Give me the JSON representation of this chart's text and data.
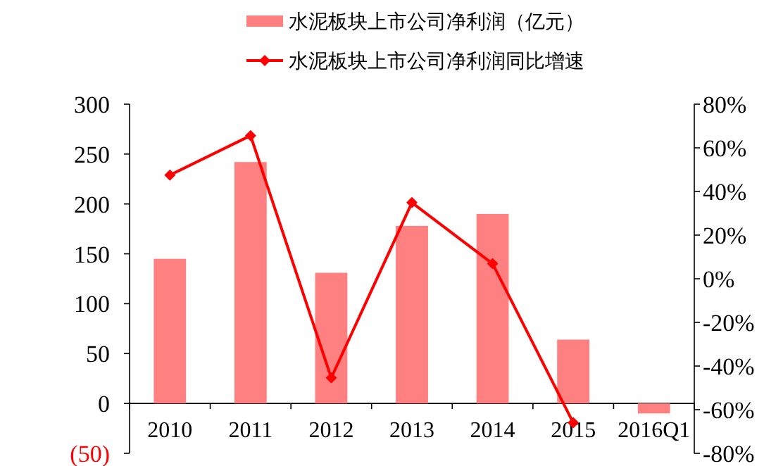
{
  "chart_data": {
    "type": "bar",
    "categories": [
      "2010",
      "2011",
      "2012",
      "2013",
      "2014",
      "2015",
      "2016Q1"
    ],
    "series": [
      {
        "name": "水泥板块上市公司净利润（亿元）",
        "color": "#ff8080",
        "values": [
          145,
          242,
          131,
          178,
          190,
          64,
          -10
        ]
      },
      {
        "name": "水泥板块上市公司净利润同比增速",
        "type": "line",
        "axis": "y2",
        "color": "#ff0000",
        "marker": "diamond",
        "values": [
          47.5,
          65.6,
          -45.4,
          34.9,
          6.9,
          -66,
          null
        ]
      }
    ],
    "ylim": [
      -50,
      300
    ],
    "yticks": [
      {
        "value": -50,
        "label": "(50)"
      },
      0,
      50,
      100,
      150,
      200,
      250,
      300
    ],
    "y2lim": [
      -80,
      80
    ],
    "y2ticks": [
      {
        "value": -80,
        "label": "-80%"
      },
      {
        "value": -60,
        "label": "-60%"
      },
      {
        "value": -40,
        "label": "-40%"
      },
      {
        "value": -20,
        "label": "-20%"
      },
      {
        "value": 0,
        "label": "0%"
      },
      {
        "value": 20,
        "label": "20%"
      },
      {
        "value": 40,
        "label": "40%"
      },
      {
        "value": 60,
        "label": "60%"
      },
      {
        "value": 80,
        "label": "80%"
      }
    ],
    "legend": "top",
    "grid": false
  }
}
